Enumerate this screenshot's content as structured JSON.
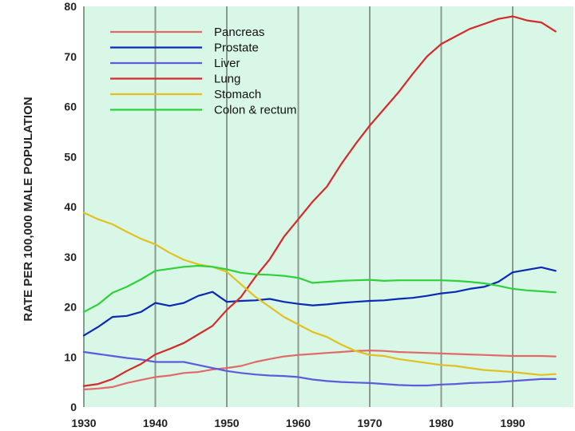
{
  "chart_data": {
    "type": "line",
    "title": "",
    "xlabel": "",
    "ylabel": "RATE PER 100,000 MALE POPULATION",
    "xlim": [
      1930,
      1996
    ],
    "ylim": [
      0,
      80
    ],
    "x_ticks": [
      "1930",
      "1940",
      "1950",
      "1960",
      "1970",
      "1980",
      "1990"
    ],
    "y_ticks": [
      "0",
      "10",
      "20",
      "30",
      "40",
      "50",
      "60",
      "70",
      "80"
    ],
    "grid": "vertical",
    "legend_position": "top-left",
    "background_color": "#d9f7e6",
    "x": [
      1930,
      1932,
      1934,
      1936,
      1938,
      1940,
      1942,
      1944,
      1946,
      1948,
      1950,
      1952,
      1954,
      1956,
      1958,
      1960,
      1962,
      1964,
      1966,
      1968,
      1970,
      1972,
      1974,
      1976,
      1978,
      1980,
      1982,
      1984,
      1986,
      1988,
      1990,
      1992,
      1994,
      1996
    ],
    "series": [
      {
        "name": "Pancreas",
        "color": "#e06a6a",
        "values": [
          3.5,
          3.7,
          4.0,
          4.8,
          5.4,
          6.0,
          6.3,
          6.8,
          7.0,
          7.5,
          7.8,
          8.2,
          9.0,
          9.6,
          10.1,
          10.4,
          10.6,
          10.8,
          11.0,
          11.2,
          11.3,
          11.2,
          11.0,
          10.9,
          10.8,
          10.7,
          10.6,
          10.5,
          10.4,
          10.3,
          10.2,
          10.2,
          10.2,
          10.1
        ]
      },
      {
        "name": "Prostate",
        "color": "#0a2ab5",
        "values": [
          14.3,
          16.0,
          18.0,
          18.2,
          19.0,
          20.8,
          20.2,
          20.8,
          22.2,
          23.0,
          21.0,
          21.2,
          21.3,
          21.6,
          21.0,
          20.6,
          20.3,
          20.5,
          20.8,
          21.0,
          21.2,
          21.3,
          21.6,
          21.8,
          22.2,
          22.7,
          23.0,
          23.6,
          24.0,
          25.0,
          26.9,
          27.4,
          27.9,
          27.2
        ]
      },
      {
        "name": "Liver",
        "color": "#5b5bdc",
        "values": [
          11.0,
          10.6,
          10.2,
          9.8,
          9.5,
          9.0,
          9.0,
          9.0,
          8.4,
          7.8,
          7.2,
          6.8,
          6.5,
          6.3,
          6.2,
          6.0,
          5.5,
          5.2,
          5.0,
          4.9,
          4.8,
          4.6,
          4.4,
          4.3,
          4.3,
          4.5,
          4.6,
          4.8,
          4.9,
          5.0,
          5.2,
          5.4,
          5.6,
          5.6
        ]
      },
      {
        "name": "Lung",
        "color": "#d42a2a",
        "values": [
          4.2,
          4.6,
          5.6,
          7.2,
          8.6,
          10.5,
          11.6,
          12.8,
          14.5,
          16.2,
          19.4,
          22.0,
          26.0,
          29.5,
          34.0,
          37.5,
          41.0,
          44.0,
          48.5,
          52.5,
          56.2,
          59.5,
          62.8,
          66.5,
          70.0,
          72.5,
          74.0,
          75.5,
          76.5,
          77.5,
          78.0,
          77.2,
          76.8,
          75.0
        ]
      },
      {
        "name": "Stomach",
        "color": "#e2c020",
        "values": [
          38.8,
          37.5,
          36.5,
          35.0,
          33.6,
          32.5,
          30.8,
          29.4,
          28.5,
          28.0,
          27.0,
          24.5,
          22.0,
          20.0,
          18.0,
          16.5,
          15.0,
          14.0,
          12.5,
          11.2,
          10.4,
          10.2,
          9.6,
          9.2,
          8.8,
          8.4,
          8.2,
          7.8,
          7.4,
          7.2,
          7.0,
          6.7,
          6.4,
          6.6
        ]
      },
      {
        "name": "Colon & rectum",
        "color": "#2ed23a",
        "values": [
          19.0,
          20.5,
          22.8,
          24.0,
          25.5,
          27.2,
          27.6,
          28.0,
          28.2,
          28.0,
          27.5,
          26.8,
          26.5,
          26.4,
          26.2,
          25.8,
          24.8,
          25.0,
          25.2,
          25.3,
          25.4,
          25.2,
          25.3,
          25.3,
          25.3,
          25.3,
          25.2,
          25.0,
          24.7,
          24.2,
          23.6,
          23.3,
          23.1,
          22.9
        ]
      }
    ]
  }
}
